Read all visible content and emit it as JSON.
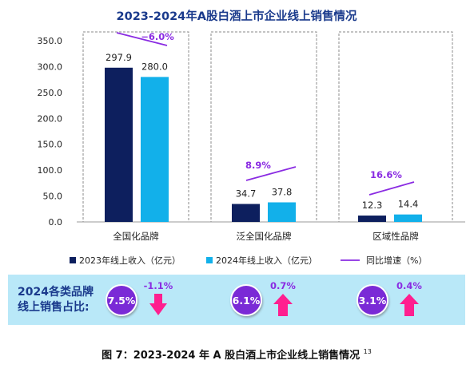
{
  "chart_data": {
    "type": "bar",
    "title": "2023-2024年A股白酒上市企业线上销售情况",
    "categories": [
      "全国化品牌",
      "泛全国化品牌",
      "区域性品牌"
    ],
    "series": [
      {
        "name": "2023年线上收入（亿元）",
        "color": "#0d1f5e",
        "values": [
          297.9,
          34.7,
          12.3
        ]
      },
      {
        "name": "2024年线上收入（亿元）",
        "color": "#12b0ea",
        "values": [
          280.0,
          37.8,
          14.4
        ]
      }
    ],
    "growth": {
      "name": "同比增速（%）",
      "color": "#8a2be2",
      "values": [
        -6.0,
        8.9,
        16.6
      ],
      "labels": [
        "−6.0%",
        "8.9%",
        "16.6%"
      ]
    },
    "value_labels": [
      [
        "297.9",
        "280.0"
      ],
      [
        "34.7",
        "37.8"
      ],
      [
        "12.3",
        "14.4"
      ]
    ],
    "ylim": [
      0,
      350
    ],
    "yticks": [
      0,
      50,
      100,
      150,
      200,
      250,
      300,
      350
    ],
    "ytick_labels": [
      "0.0",
      "50.0",
      "100.0",
      "150.0",
      "200.0",
      "250.0",
      "300.0",
      "350.0"
    ],
    "xlabel": "",
    "ylabel": "",
    "legend_position": "bottom"
  },
  "share_panel": {
    "label_line1": "2024各类品牌",
    "label_line2": "线上销售占比:",
    "items": [
      {
        "share": "7.5%",
        "change": "-1.1%",
        "direction": "down"
      },
      {
        "share": "6.1%",
        "change": "0.7%",
        "direction": "up"
      },
      {
        "share": "3.1%",
        "change": "0.4%",
        "direction": "up"
      }
    ],
    "colors": {
      "band": "#b9e8f8",
      "circle": "#7a2bd6",
      "change_text": "#8a2be2",
      "arrow": "#ff1f8f"
    }
  },
  "caption": {
    "text": "图 7：2023-2024 年 A 股白酒上市企业线上销售情况",
    "superscript": "13"
  }
}
